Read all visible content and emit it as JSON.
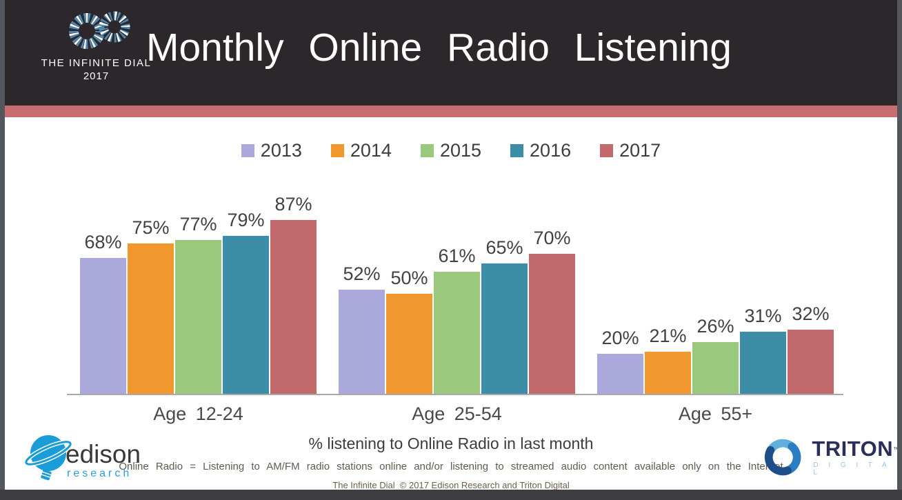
{
  "header": {
    "brand_line1": "THE INFINITE DIAL",
    "brand_line2": "2017",
    "title": "Monthly Online Radio Listening"
  },
  "chart_data": {
    "type": "bar",
    "title": "Monthly Online Radio Listening",
    "categories": [
      "Age 12-24",
      "Age 25-54",
      "Age 55+"
    ],
    "series": [
      {
        "name": "2013",
        "color": "#ABA9DB",
        "values": [
          68,
          52,
          20
        ]
      },
      {
        "name": "2014",
        "color": "#F0982D",
        "values": [
          75,
          50,
          21
        ]
      },
      {
        "name": "2015",
        "color": "#9AC97E",
        "values": [
          77,
          61,
          26
        ]
      },
      {
        "name": "2016",
        "color": "#3C8DA7",
        "values": [
          79,
          65,
          31
        ]
      },
      {
        "name": "2017",
        "color": "#C2696C",
        "values": [
          87,
          70,
          32
        ]
      }
    ],
    "value_suffix": "%",
    "xlabel": "% listening to Online Radio in last month",
    "ylim": [
      0,
      100
    ],
    "grid": false,
    "legend_position": "top"
  },
  "footer": {
    "note": "Online Radio = Listening to AM/FM radio stations online and/or listening to streamed audio content available only on the Internet",
    "copyright": "The Infinite Dial  © 2017 Edison Research and Triton Digital"
  },
  "logos": {
    "edison": {
      "name": "edison",
      "sub": "research"
    },
    "triton": {
      "name": "TRITON",
      "tm": "™",
      "sub": "D I G I T A L"
    }
  },
  "colors": {
    "header_bg": "#2B272A",
    "accent_stripe": "#C76F70",
    "axis_line": "#A9A9A9"
  }
}
